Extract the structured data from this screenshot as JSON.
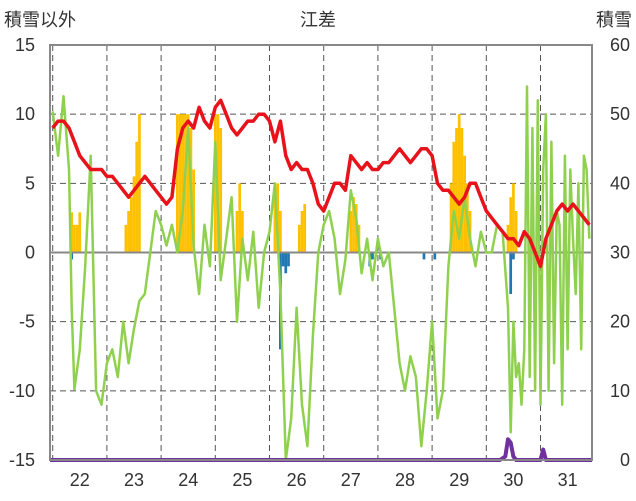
{
  "chart_data": {
    "type": "bar+line",
    "title": "江差",
    "ylabel_left": "積雪以外",
    "ylabel_right": "積雪",
    "ylim_left": [
      -15,
      15
    ],
    "ylim_right": [
      0,
      60
    ],
    "yticks_left": [
      "15",
      "10",
      "5",
      "0",
      "-5",
      "-10",
      "-15"
    ],
    "yticks_right": [
      "60",
      "50",
      "40",
      "30",
      "20",
      "10",
      "0"
    ],
    "xlim": [
      21.45,
      31.45
    ],
    "xticks": [
      "22",
      "23",
      "24",
      "25",
      "26",
      "27",
      "28",
      "29",
      "30",
      "31"
    ],
    "grid": "vertical dashed at day boundaries, horizontal dashed at 5-unit steps",
    "series": [
      {
        "kind": "bar",
        "axis": "left",
        "color": "#FFC000",
        "values": [
          [
            21.85,
            2.9
          ],
          [
            21.9,
            2.0
          ],
          [
            21.95,
            2.0
          ],
          [
            22.0,
            2.9
          ],
          [
            22.85,
            2.0
          ],
          [
            22.9,
            3.0
          ],
          [
            22.95,
            4.0
          ],
          [
            23.0,
            5.5
          ],
          [
            23.05,
            8.0
          ],
          [
            23.1,
            10.0
          ],
          [
            23.8,
            10.0
          ],
          [
            23.85,
            10.0
          ],
          [
            23.9,
            10.0
          ],
          [
            23.95,
            10.0
          ],
          [
            24.0,
            10.0
          ],
          [
            24.05,
            9.0
          ],
          [
            24.1,
            6.0
          ],
          [
            24.5,
            10.0
          ],
          [
            24.55,
            10.0
          ],
          [
            24.6,
            9.0
          ],
          [
            24.9,
            3.0
          ],
          [
            24.95,
            5.0
          ],
          [
            25.0,
            3.0
          ],
          [
            25.6,
            4.0
          ],
          [
            25.65,
            5.0
          ],
          [
            25.7,
            3.0
          ],
          [
            26.05,
            2.0
          ],
          [
            26.1,
            3.0
          ],
          [
            26.15,
            3.5
          ],
          [
            27.0,
            3.0
          ],
          [
            27.05,
            4.0
          ],
          [
            27.1,
            3.5
          ],
          [
            27.15,
            2.0
          ],
          [
            28.85,
            5.0
          ],
          [
            28.9,
            8.0
          ],
          [
            28.95,
            9.0
          ],
          [
            29.0,
            10.0
          ],
          [
            29.05,
            9.0
          ],
          [
            29.1,
            7.0
          ],
          [
            29.15,
            5.0
          ],
          [
            29.2,
            3.0
          ],
          [
            29.9,
            2.0
          ],
          [
            29.95,
            4.0
          ],
          [
            30.0,
            5.0
          ],
          [
            30.05,
            3.0
          ]
        ]
      },
      {
        "kind": "bar",
        "axis": "left",
        "color": "#1F77B4",
        "values": [
          [
            21.85,
            -0.5
          ],
          [
            25.7,
            -7.0
          ],
          [
            25.75,
            -1.0
          ],
          [
            25.8,
            -1.5
          ],
          [
            25.85,
            -1.0
          ],
          [
            27.35,
            -1.0
          ],
          [
            27.4,
            -0.5
          ],
          [
            27.55,
            -0.5
          ],
          [
            28.35,
            -0.5
          ],
          [
            28.55,
            -0.5
          ],
          [
            29.95,
            -3.0
          ],
          [
            30.0,
            -0.5
          ]
        ]
      },
      {
        "kind": "line",
        "axis": "left",
        "color": "#8FD14F",
        "x": [
          21.5,
          21.6,
          21.7,
          21.8,
          21.85,
          21.9,
          22.0,
          22.1,
          22.2,
          22.3,
          22.4,
          22.5,
          22.6,
          22.7,
          22.8,
          22.9,
          23.0,
          23.1,
          23.2,
          23.3,
          23.4,
          23.5,
          23.6,
          23.7,
          23.8,
          23.9,
          24.0,
          24.1,
          24.2,
          24.3,
          24.4,
          24.5,
          24.6,
          24.7,
          24.8,
          24.9,
          25.0,
          25.1,
          25.2,
          25.3,
          25.4,
          25.5,
          25.6,
          25.7,
          25.8,
          25.9,
          26.0,
          26.1,
          26.2,
          26.3,
          26.4,
          26.5,
          26.6,
          26.7,
          26.8,
          26.9,
          27.0,
          27.1,
          27.2,
          27.3,
          27.4,
          27.5,
          27.6,
          27.7,
          27.8,
          27.9,
          28.0,
          28.1,
          28.2,
          28.3,
          28.4,
          28.5,
          28.6,
          28.7,
          28.8,
          28.9,
          29.0,
          29.1,
          29.2,
          29.3,
          29.4,
          29.5,
          29.6,
          29.7,
          29.8,
          29.9,
          29.95,
          30.0,
          30.05,
          30.1,
          30.15,
          30.2,
          30.25,
          30.3,
          30.35,
          30.4,
          30.45,
          30.5,
          30.55,
          30.6,
          30.65,
          30.7,
          30.75,
          30.8,
          30.85,
          30.9,
          30.95,
          31.0,
          31.05,
          31.1,
          31.15,
          31.2,
          31.25,
          31.3,
          31.35,
          31.4
        ],
        "values": [
          10.2,
          7.0,
          11.3,
          6.0,
          -4.0,
          -9.9,
          -7.0,
          -1.0,
          7.0,
          -10.0,
          -11.0,
          -8.0,
          -7.0,
          -9.0,
          -5.0,
          -8.0,
          -5.5,
          -3.5,
          -3.0,
          0.0,
          3.0,
          2.0,
          0.5,
          2.0,
          0.0,
          3.0,
          9.0,
          0.5,
          -3.0,
          2.0,
          -1.0,
          8.0,
          -2.0,
          1.0,
          4.0,
          -5.0,
          1.0,
          -2.0,
          1.5,
          -4.0,
          0.0,
          1.5,
          5.0,
          -3.0,
          -15.0,
          -12.0,
          -4.0,
          -11.0,
          -14.0,
          -6.0,
          0.0,
          2.0,
          3.0,
          1.0,
          -3.0,
          -0.5,
          4.5,
          2.5,
          -1.5,
          1.0,
          -2.0,
          1.0,
          -1.0,
          0.0,
          -4.0,
          -8.0,
          -10.0,
          -7.5,
          -9.0,
          -14.0,
          -10.0,
          -5.0,
          -12.0,
          -10.0,
          -1.0,
          3.0,
          1.0,
          4.0,
          1.0,
          -1.0,
          1.5,
          0.0,
          0.0,
          2.0,
          1.5,
          -4.0,
          -13.0,
          -5.0,
          -9.0,
          -8.0,
          -11.0,
          -7.0,
          12.0,
          -9.0,
          9.0,
          -10.0,
          11.0,
          -11.0,
          6.0,
          10.0,
          -10.0,
          8.0,
          -8.0,
          3.0,
          2.0,
          -11.0,
          7.0,
          -7.0,
          6.0,
          1.0,
          -3.0,
          5.0,
          -7.0,
          7.0,
          6.0,
          1.0
        ]
      },
      {
        "kind": "line",
        "axis": "left",
        "color": "#E8121A",
        "x": [
          21.5,
          21.6,
          21.7,
          21.8,
          21.9,
          22.0,
          22.1,
          22.2,
          22.3,
          22.4,
          22.5,
          22.6,
          22.7,
          22.8,
          22.9,
          23.0,
          23.1,
          23.2,
          23.3,
          23.4,
          23.5,
          23.6,
          23.7,
          23.8,
          23.9,
          24.0,
          24.1,
          24.2,
          24.3,
          24.4,
          24.5,
          24.6,
          24.7,
          24.8,
          24.9,
          25.0,
          25.1,
          25.2,
          25.3,
          25.4,
          25.5,
          25.6,
          25.7,
          25.8,
          25.9,
          26.0,
          26.1,
          26.2,
          26.3,
          26.4,
          26.5,
          26.6,
          26.7,
          26.8,
          26.9,
          27.0,
          27.1,
          27.2,
          27.3,
          27.4,
          27.5,
          27.6,
          27.7,
          27.8,
          27.9,
          28.0,
          28.1,
          28.2,
          28.3,
          28.4,
          28.5,
          28.6,
          28.7,
          28.8,
          28.9,
          29.0,
          29.1,
          29.2,
          29.3,
          29.4,
          29.5,
          29.6,
          29.7,
          29.8,
          29.9,
          30.0,
          30.1,
          30.2,
          30.3,
          30.4,
          30.5,
          30.6,
          30.7,
          30.8,
          30.9,
          31.0,
          31.1,
          31.2,
          31.3,
          31.4
        ],
        "values": [
          9.0,
          9.5,
          9.5,
          9.0,
          8.0,
          7.0,
          6.5,
          6.0,
          6.0,
          6.0,
          5.5,
          5.5,
          5.0,
          4.5,
          4.0,
          4.5,
          5.0,
          5.5,
          5.0,
          4.5,
          4.0,
          3.5,
          4.0,
          7.5,
          9.0,
          9.5,
          9.0,
          10.5,
          9.5,
          9.0,
          10.5,
          11.0,
          10.0,
          9.0,
          8.5,
          9.0,
          9.5,
          9.5,
          10.0,
          10.0,
          9.5,
          8.0,
          9.5,
          7.0,
          6.0,
          6.5,
          6.0,
          6.0,
          5.0,
          3.5,
          3.0,
          4.0,
          5.0,
          5.0,
          4.5,
          7.0,
          6.5,
          6.0,
          6.5,
          6.0,
          6.0,
          6.5,
          6.5,
          7.0,
          7.5,
          7.0,
          6.5,
          7.0,
          7.5,
          7.5,
          7.0,
          5.0,
          4.5,
          4.5,
          4.0,
          3.5,
          4.0,
          5.0,
          5.0,
          4.0,
          3.0,
          2.5,
          2.0,
          1.5,
          1.0,
          1.0,
          0.5,
          1.5,
          1.0,
          0.0,
          -1.0,
          1.0,
          2.0,
          3.0,
          3.5,
          3.0,
          3.5,
          3.0,
          2.5,
          2.0
        ]
      },
      {
        "kind": "line",
        "axis": "right",
        "color": "#7030A0",
        "x": [
          21.45,
          29.75,
          29.85,
          29.9,
          29.95,
          30.0,
          30.05,
          30.3,
          30.5,
          30.55,
          30.6,
          30.7,
          31.45
        ],
        "values": [
          0.0,
          0.0,
          0.5,
          3.0,
          2.5,
          0.5,
          0.0,
          0.0,
          0.0,
          1.5,
          0.0,
          0.0,
          0.0
        ]
      }
    ]
  }
}
